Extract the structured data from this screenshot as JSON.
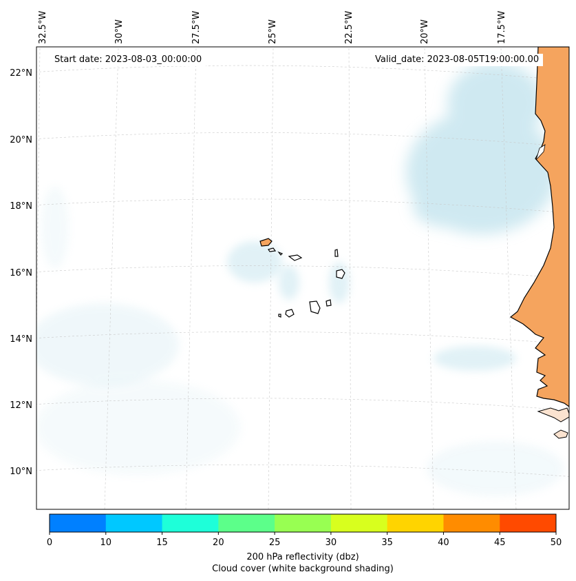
{
  "map": {
    "start_date_label": "Start date: 2023-08-03_00:00:00",
    "valid_date_label": "Valid_date: 2023-08-05T19:00:00.00",
    "lon_labels": [
      "32.5°W",
      "30°W",
      "27.5°W",
      "25°W",
      "22.5°W",
      "20°W",
      "17.5°W"
    ],
    "lat_labels": [
      "22°N",
      "20°N",
      "18°N",
      "16°N",
      "14°N",
      "12°N",
      "10°N"
    ],
    "land_color": "#f5a45e",
    "cloud_color": "#a9d8e6",
    "coast_color": "#000000"
  },
  "colorbar": {
    "title": "200 hPa reflectivity (dbz)",
    "subtitle": "Cloud cover (white background shading)",
    "ticks": [
      "0",
      "10",
      "15",
      "20",
      "25",
      "30",
      "35",
      "40",
      "45",
      "50"
    ],
    "colors": [
      "#0080ff",
      "#00c8ff",
      "#1effd9",
      "#5cff8a",
      "#98ff52",
      "#d8ff1e",
      "#ffd400",
      "#ff8c00",
      "#ff4a00"
    ]
  }
}
